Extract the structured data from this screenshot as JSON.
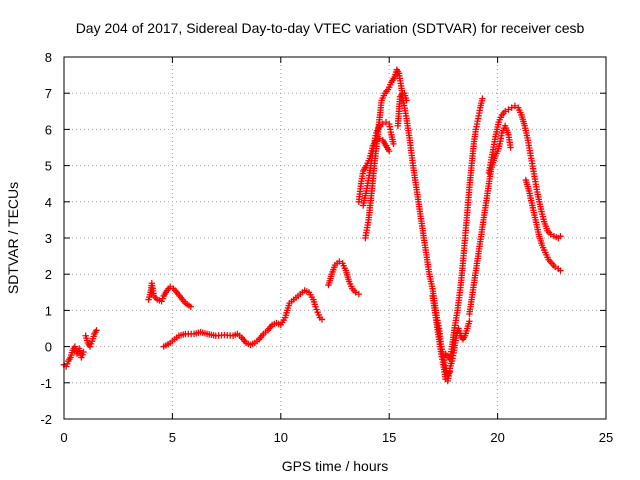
{
  "chart_data": {
    "type": "scatter",
    "title": "Day 204 of 2017, Sidereal Day-to-day VTEC variation (SDTVAR) for receiver cesb",
    "xlabel": "GPS time / hours",
    "ylabel": "SDTVAR / TECUs",
    "xlim": [
      0,
      25
    ],
    "ylim": [
      -2,
      8
    ],
    "xticks": [
      0,
      5,
      10,
      15,
      20,
      25
    ],
    "yticks": [
      -2,
      -1,
      0,
      1,
      2,
      3,
      4,
      5,
      6,
      7,
      8
    ],
    "grid": true,
    "marker": "plus",
    "color": "#ff0000",
    "series": [
      {
        "segments": [
          [
            [
              0.0,
              -0.5
            ],
            [
              0.1,
              -0.55
            ],
            [
              0.2,
              -0.4
            ],
            [
              0.3,
              -0.3
            ],
            [
              0.4,
              -0.1
            ],
            [
              0.5,
              0.0
            ],
            [
              0.6,
              -0.2
            ],
            [
              0.7,
              -0.05
            ],
            [
              0.8,
              -0.3
            ],
            [
              0.9,
              -0.15
            ]
          ],
          [
            [
              1.0,
              0.3
            ],
            [
              1.1,
              0.1
            ],
            [
              1.2,
              0.0
            ],
            [
              1.3,
              0.15
            ],
            [
              1.4,
              0.35
            ],
            [
              1.5,
              0.45
            ]
          ],
          [
            [
              3.9,
              1.3
            ],
            [
              4.0,
              1.5
            ],
            [
              4.05,
              1.75
            ],
            [
              4.15,
              1.4
            ],
            [
              4.3,
              1.3
            ],
            [
              4.5,
              1.25
            ],
            [
              4.6,
              1.4
            ],
            [
              4.75,
              1.55
            ],
            [
              4.9,
              1.65
            ],
            [
              5.05,
              1.6
            ],
            [
              5.2,
              1.5
            ],
            [
              5.4,
              1.35
            ],
            [
              5.6,
              1.2
            ],
            [
              5.85,
              1.1
            ]
          ],
          [
            [
              4.6,
              0.0
            ],
            [
              4.9,
              0.1
            ],
            [
              5.1,
              0.2
            ],
            [
              5.3,
              0.3
            ],
            [
              5.6,
              0.35
            ],
            [
              6.0,
              0.35
            ],
            [
              6.3,
              0.4
            ],
            [
              6.6,
              0.35
            ],
            [
              7.0,
              0.3
            ],
            [
              7.4,
              0.32
            ],
            [
              7.8,
              0.3
            ],
            [
              8.0,
              0.35
            ],
            [
              8.2,
              0.25
            ],
            [
              8.4,
              0.1
            ],
            [
              8.6,
              0.05
            ],
            [
              8.8,
              0.1
            ],
            [
              9.0,
              0.2
            ],
            [
              9.2,
              0.35
            ],
            [
              9.4,
              0.45
            ],
            [
              9.6,
              0.6
            ],
            [
              9.8,
              0.65
            ],
            [
              10.0,
              0.6
            ],
            [
              10.2,
              0.8
            ],
            [
              10.3,
              1.0
            ],
            [
              10.4,
              1.2
            ],
            [
              10.6,
              1.3
            ],
            [
              10.8,
              1.4
            ],
            [
              11.0,
              1.5
            ],
            [
              11.1,
              1.55
            ],
            [
              11.3,
              1.5
            ],
            [
              11.5,
              1.3
            ],
            [
              11.6,
              1.1
            ],
            [
              11.7,
              0.95
            ],
            [
              11.8,
              0.8
            ],
            [
              11.9,
              0.75
            ]
          ],
          [
            [
              12.2,
              1.7
            ],
            [
              12.35,
              2.0
            ],
            [
              12.5,
              2.25
            ],
            [
              12.7,
              2.35
            ],
            [
              12.85,
              2.3
            ],
            [
              13.0,
              2.1
            ],
            [
              13.15,
              1.8
            ],
            [
              13.3,
              1.6
            ],
            [
              13.45,
              1.5
            ],
            [
              13.6,
              1.45
            ]
          ],
          [
            [
              13.6,
              4.0
            ],
            [
              13.7,
              4.5
            ],
            [
              13.8,
              4.85
            ],
            [
              13.95,
              5.0
            ],
            [
              14.1,
              5.2
            ],
            [
              14.25,
              5.55
            ],
            [
              14.4,
              5.7
            ],
            [
              14.55,
              5.75
            ],
            [
              14.7,
              5.7
            ],
            [
              14.85,
              5.55
            ],
            [
              15.0,
              5.4
            ]
          ],
          [
            [
              13.8,
              3.9
            ],
            [
              13.95,
              4.3
            ],
            [
              14.1,
              4.8
            ],
            [
              14.25,
              5.4
            ],
            [
              14.4,
              5.9
            ],
            [
              14.55,
              6.1
            ],
            [
              14.7,
              6.15
            ],
            [
              14.85,
              6.2
            ],
            [
              15.0,
              6.15
            ],
            [
              15.1,
              5.85
            ],
            [
              15.2,
              5.6
            ]
          ],
          [
            [
              13.9,
              3.0
            ],
            [
              14.05,
              3.5
            ],
            [
              14.2,
              4.3
            ],
            [
              14.35,
              5.2
            ],
            [
              14.5,
              6.0
            ],
            [
              14.65,
              6.8
            ],
            [
              14.8,
              7.0
            ],
            [
              14.95,
              7.1
            ],
            [
              15.1,
              7.3
            ],
            [
              15.25,
              7.45
            ],
            [
              15.35,
              7.65
            ],
            [
              15.45,
              7.55
            ],
            [
              15.55,
              7.2
            ],
            [
              15.65,
              6.8
            ],
            [
              15.8,
              6.3
            ],
            [
              15.95,
              5.7
            ],
            [
              16.1,
              5.0
            ],
            [
              16.25,
              4.4
            ],
            [
              16.4,
              3.8
            ],
            [
              16.55,
              3.2
            ],
            [
              16.7,
              2.6
            ],
            [
              16.85,
              2.0
            ],
            [
              17.0,
              1.6
            ],
            [
              17.1,
              1.2
            ],
            [
              17.2,
              0.8
            ],
            [
              17.3,
              0.5
            ],
            [
              17.4,
              0.0
            ],
            [
              17.5,
              -0.3
            ],
            [
              17.6,
              -0.6
            ],
            [
              17.7,
              -0.8
            ],
            [
              17.8,
              -0.7
            ]
          ],
          [
            [
              15.4,
              6.1
            ],
            [
              15.5,
              6.9
            ],
            [
              15.6,
              7.0
            ],
            [
              15.7,
              7.0
            ],
            [
              15.8,
              6.8
            ]
          ],
          [
            [
              17.0,
              1.4
            ],
            [
              17.1,
              1.0
            ],
            [
              17.2,
              0.6
            ],
            [
              17.3,
              0.2
            ],
            [
              17.4,
              -0.2
            ],
            [
              17.5,
              -0.5
            ],
            [
              17.6,
              -0.9
            ],
            [
              17.7,
              -0.95
            ],
            [
              17.8,
              -0.6
            ],
            [
              17.9,
              -0.4
            ],
            [
              18.0,
              -0.1
            ],
            [
              18.1,
              0.3
            ],
            [
              18.2,
              0.5
            ],
            [
              18.3,
              0.3
            ],
            [
              18.4,
              0.2
            ],
            [
              18.5,
              0.3
            ],
            [
              18.6,
              0.5
            ],
            [
              18.7,
              0.7
            ]
          ],
          [
            [
              17.6,
              -0.2
            ],
            [
              17.8,
              -0.35
            ],
            [
              17.9,
              0.0
            ],
            [
              18.0,
              0.45
            ],
            [
              18.15,
              1.0
            ],
            [
              18.3,
              1.7
            ],
            [
              18.4,
              2.3
            ],
            [
              18.5,
              3.0
            ],
            [
              18.6,
              3.7
            ],
            [
              18.7,
              4.4
            ],
            [
              18.8,
              5.0
            ],
            [
              18.9,
              5.6
            ],
            [
              19.0,
              6.0
            ],
            [
              19.1,
              6.3
            ],
            [
              19.2,
              6.6
            ],
            [
              19.3,
              6.85
            ]
          ],
          [
            [
              18.7,
              0.9
            ],
            [
              18.8,
              1.3
            ],
            [
              18.95,
              1.9
            ],
            [
              19.1,
              2.5
            ],
            [
              19.25,
              3.1
            ],
            [
              19.4,
              3.7
            ],
            [
              19.55,
              4.3
            ],
            [
              19.7,
              4.9
            ],
            [
              19.85,
              5.2
            ],
            [
              20.0,
              5.4
            ],
            [
              20.1,
              5.6
            ],
            [
              20.2,
              5.9
            ],
            [
              20.35,
              6.1
            ],
            [
              20.5,
              5.85
            ],
            [
              20.6,
              5.5
            ]
          ],
          [
            [
              19.6,
              4.8
            ],
            [
              19.75,
              5.3
            ],
            [
              19.9,
              5.8
            ],
            [
              20.05,
              6.2
            ],
            [
              20.2,
              6.4
            ],
            [
              20.35,
              6.5
            ],
            [
              20.5,
              6.55
            ],
            [
              20.65,
              6.6
            ],
            [
              20.8,
              6.65
            ],
            [
              20.95,
              6.6
            ],
            [
              21.1,
              6.4
            ],
            [
              21.25,
              6.1
            ],
            [
              21.4,
              5.7
            ],
            [
              21.55,
              5.2
            ],
            [
              21.7,
              4.7
            ],
            [
              21.85,
              4.2
            ],
            [
              22.0,
              3.8
            ],
            [
              22.15,
              3.45
            ],
            [
              22.3,
              3.2
            ],
            [
              22.45,
              3.1
            ],
            [
              22.6,
              3.05
            ],
            [
              22.8,
              3.0
            ],
            [
              22.9,
              3.05
            ]
          ],
          [
            [
              21.3,
              4.6
            ],
            [
              21.45,
              4.3
            ],
            [
              21.6,
              3.9
            ],
            [
              21.75,
              3.5
            ],
            [
              21.9,
              3.1
            ],
            [
              22.05,
              2.8
            ],
            [
              22.2,
              2.6
            ],
            [
              22.35,
              2.4
            ],
            [
              22.5,
              2.3
            ],
            [
              22.65,
              2.2
            ],
            [
              22.8,
              2.15
            ],
            [
              22.9,
              2.1
            ]
          ]
        ]
      }
    ]
  }
}
